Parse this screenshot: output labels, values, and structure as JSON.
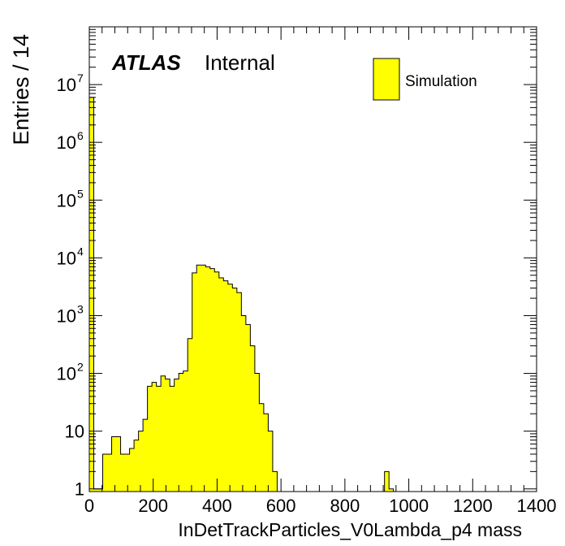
{
  "chart_data": {
    "type": "bar",
    "style": "histogram",
    "ylabel": "Entries / 14",
    "xlabel": "InDetTrackParticles_V0Lambda_p4 mass",
    "experiment_label": "ATLAS",
    "status_label": "Internal",
    "xlim": [
      0,
      1400
    ],
    "ylim": [
      0.9,
      100000000
    ],
    "yscale": "log",
    "bin_width": 14,
    "fill_color": "#ffff00",
    "line_color": "#000000",
    "x_ticks": [
      "0",
      "200",
      "400",
      "600",
      "800",
      "1000",
      "1200",
      "1400"
    ],
    "y_ticks": [
      {
        "value": 1,
        "base": "1",
        "exp": ""
      },
      {
        "value": 10,
        "base": "10",
        "exp": ""
      },
      {
        "value": 100,
        "base": "10",
        "exp": "2"
      },
      {
        "value": 1000,
        "base": "10",
        "exp": "3"
      },
      {
        "value": 10000,
        "base": "10",
        "exp": "4"
      },
      {
        "value": 100000,
        "base": "10",
        "exp": "5"
      },
      {
        "value": 1000000,
        "base": "10",
        "exp": "6"
      },
      {
        "value": 10000000,
        "base": "10",
        "exp": "7"
      }
    ],
    "series": [
      {
        "name": "Simulation",
        "values": [
          6000000,
          1,
          1,
          4,
          4,
          8,
          8,
          4,
          4,
          5,
          7,
          10,
          16,
          60,
          70,
          60,
          90,
          80,
          60,
          80,
          100,
          110,
          400,
          5500,
          7500,
          7500,
          7000,
          6500,
          5700,
          4500,
          4000,
          3500,
          3000,
          2500,
          1000,
          700,
          300,
          100,
          30,
          20,
          10,
          2,
          0,
          0,
          0,
          0,
          0,
          0,
          0,
          0,
          0,
          0,
          0,
          0,
          0,
          0,
          0,
          0,
          0,
          0,
          0,
          0,
          0,
          0,
          0,
          0,
          2,
          1,
          0,
          0,
          0,
          0,
          0,
          0,
          0,
          0,
          0,
          0,
          0,
          0,
          0,
          0,
          0,
          0,
          0,
          0,
          0,
          0,
          0,
          0,
          0,
          0,
          0,
          0,
          0,
          0,
          0,
          0,
          0,
          0
        ]
      }
    ]
  }
}
